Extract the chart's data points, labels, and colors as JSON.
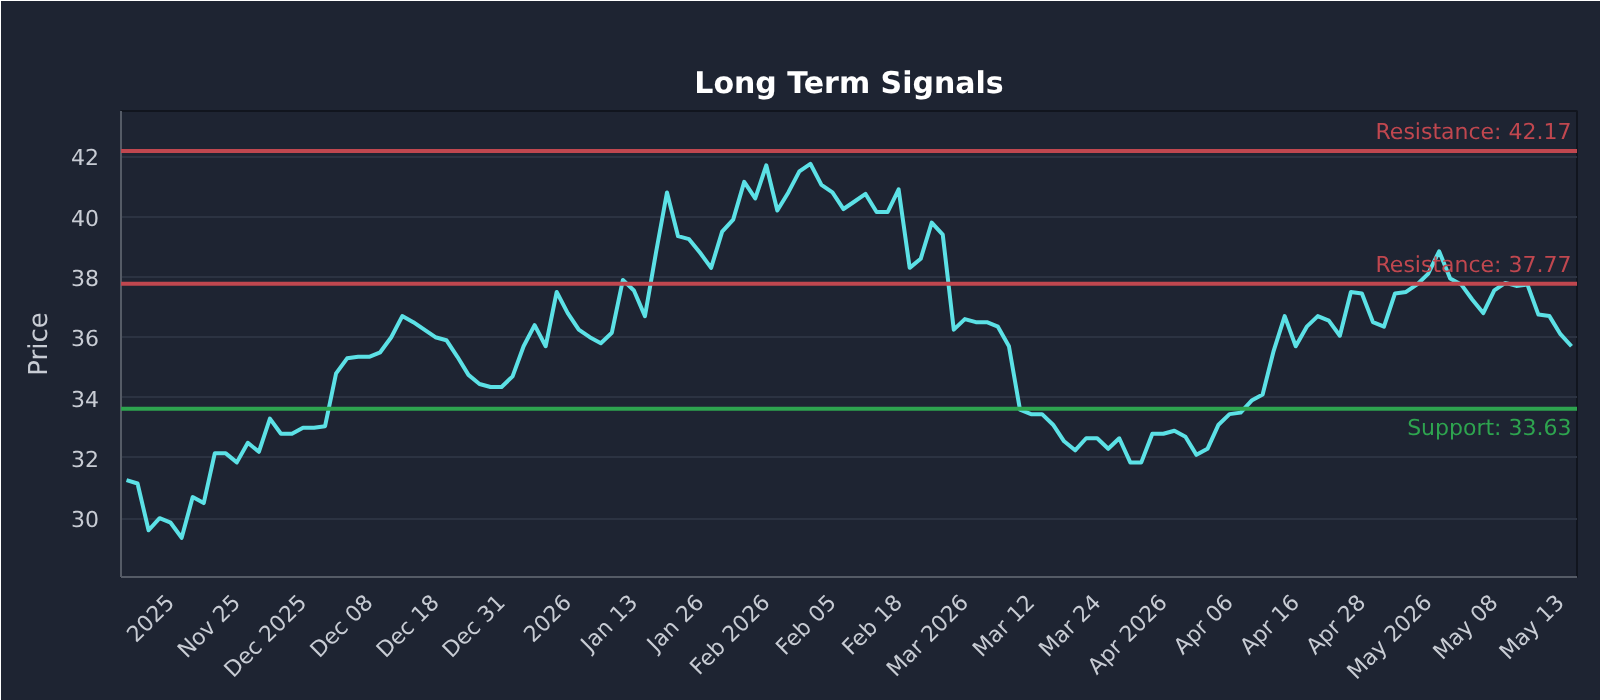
{
  "chart_data": {
    "type": "line",
    "title": "Long Term Signals",
    "ylabel": "Price",
    "categories": [
      null,
      null,
      null,
      null,
      "2025",
      null,
      null,
      null,
      null,
      null,
      "Nov 25",
      null,
      null,
      null,
      null,
      null,
      "Dec 2025",
      null,
      null,
      null,
      null,
      null,
      "Dec 08",
      null,
      null,
      null,
      null,
      null,
      "Dec 18",
      null,
      null,
      null,
      null,
      null,
      "Dec 31",
      null,
      null,
      null,
      null,
      null,
      "2026",
      null,
      null,
      null,
      null,
      null,
      "Jan 13",
      null,
      null,
      null,
      null,
      null,
      "Jan 26",
      null,
      null,
      null,
      null,
      null,
      "Feb 2026",
      null,
      null,
      null,
      null,
      null,
      "Feb 05",
      null,
      null,
      null,
      null,
      null,
      "Feb 18",
      null,
      null,
      null,
      null,
      null,
      "Mar 2026",
      null,
      null,
      null,
      null,
      null,
      "Mar 12",
      null,
      null,
      null,
      null,
      null,
      "Mar 24",
      null,
      null,
      null,
      null,
      null,
      "Apr 2026",
      null,
      null,
      null,
      null,
      null,
      "Apr 06",
      null,
      null,
      null,
      null,
      null,
      "Apr 16",
      null,
      null,
      null,
      null,
      null,
      "Apr 28",
      null,
      null,
      null,
      null,
      null,
      "May 2026",
      null,
      null,
      null,
      null,
      null,
      "May 08",
      null,
      null,
      null,
      null,
      null,
      "May 13",
      null
    ],
    "series": [
      {
        "color": "#5ce1e6",
        "values": [
          31.26,
          31.15,
          29.6,
          30.0,
          29.85,
          29.35,
          30.7,
          30.5,
          32.15,
          32.15,
          31.85,
          32.5,
          32.2,
          33.3,
          32.8,
          32.8,
          33.0,
          33.0,
          33.05,
          34.8,
          35.3,
          35.35,
          35.35,
          35.5,
          36.0,
          36.7,
          36.5,
          36.25,
          36.0,
          35.9,
          35.35,
          34.75,
          34.45,
          34.35,
          34.35,
          34.7,
          35.7,
          36.4,
          35.7,
          37.5,
          36.8,
          36.25,
          36.0,
          35.8,
          36.15,
          37.9,
          37.55,
          36.7,
          38.8,
          40.8,
          39.35,
          39.25,
          38.8,
          38.3,
          39.5,
          39.9,
          41.15,
          40.6,
          41.7,
          40.2,
          40.8,
          41.5,
          41.75,
          41.05,
          40.8,
          40.25,
          40.5,
          40.75,
          40.15,
          40.15,
          40.9,
          38.3,
          38.6,
          39.8,
          39.4,
          36.25,
          36.6,
          36.5,
          36.5,
          36.35,
          35.7,
          33.6,
          33.45,
          33.45,
          33.1,
          32.55,
          32.25,
          32.65,
          32.65,
          32.3,
          32.65,
          31.85,
          31.85,
          32.8,
          32.8,
          32.9,
          32.7,
          32.1,
          32.3,
          33.1,
          33.45,
          33.5,
          33.9,
          34.1,
          35.55,
          36.7,
          35.7,
          36.35,
          36.7,
          36.55,
          36.05,
          37.5,
          37.45,
          36.5,
          36.35,
          37.45,
          37.5,
          37.75,
          38.1,
          38.85,
          37.95,
          37.75,
          37.25,
          36.8,
          37.55,
          37.8,
          37.7,
          37.75,
          36.75,
          36.7,
          36.1,
          35.7
        ]
      }
    ],
    "ylim": [
      28.05,
      43.5
    ],
    "yticks": [
      30,
      32,
      34,
      36,
      38,
      40,
      42
    ],
    "grid": "y",
    "line_style": "solid",
    "marker": "none",
    "ref_lines": [
      {
        "axis": "y",
        "value": 42.17,
        "label": "Resistance: 42.17",
        "color": "#c0474f"
      },
      {
        "axis": "y",
        "value": 37.77,
        "label": "Resistance: 37.77",
        "color": "#c0474f"
      },
      {
        "axis": "y",
        "value": 33.63,
        "label": "Support: 33.63",
        "color": "#2ea44f"
      }
    ]
  }
}
